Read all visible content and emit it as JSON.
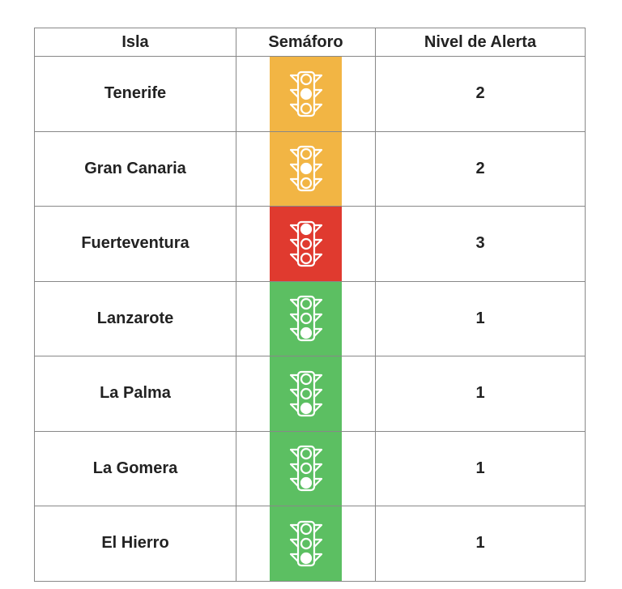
{
  "table": {
    "header": [
      "Isla",
      "Semáforo",
      "Nivel de Alerta"
    ],
    "rows": [
      {
        "isla": "Tenerife",
        "nivel": 2,
        "color": "#f2b544"
      },
      {
        "isla": "Gran Canaria",
        "nivel": 2,
        "color": "#f2b544"
      },
      {
        "isla": "Fuerteventura",
        "nivel": 3,
        "color": "#e03a2f"
      },
      {
        "isla": "Lanzarote",
        "nivel": 1,
        "color": "#5cbf62"
      },
      {
        "isla": "La Palma",
        "nivel": 1,
        "color": "#5cbf62"
      },
      {
        "isla": "La Gomera",
        "nivel": 1,
        "color": "#5cbf62"
      },
      {
        "isla": "El Hierro",
        "nivel": 1,
        "color": "#5cbf62"
      }
    ]
  }
}
